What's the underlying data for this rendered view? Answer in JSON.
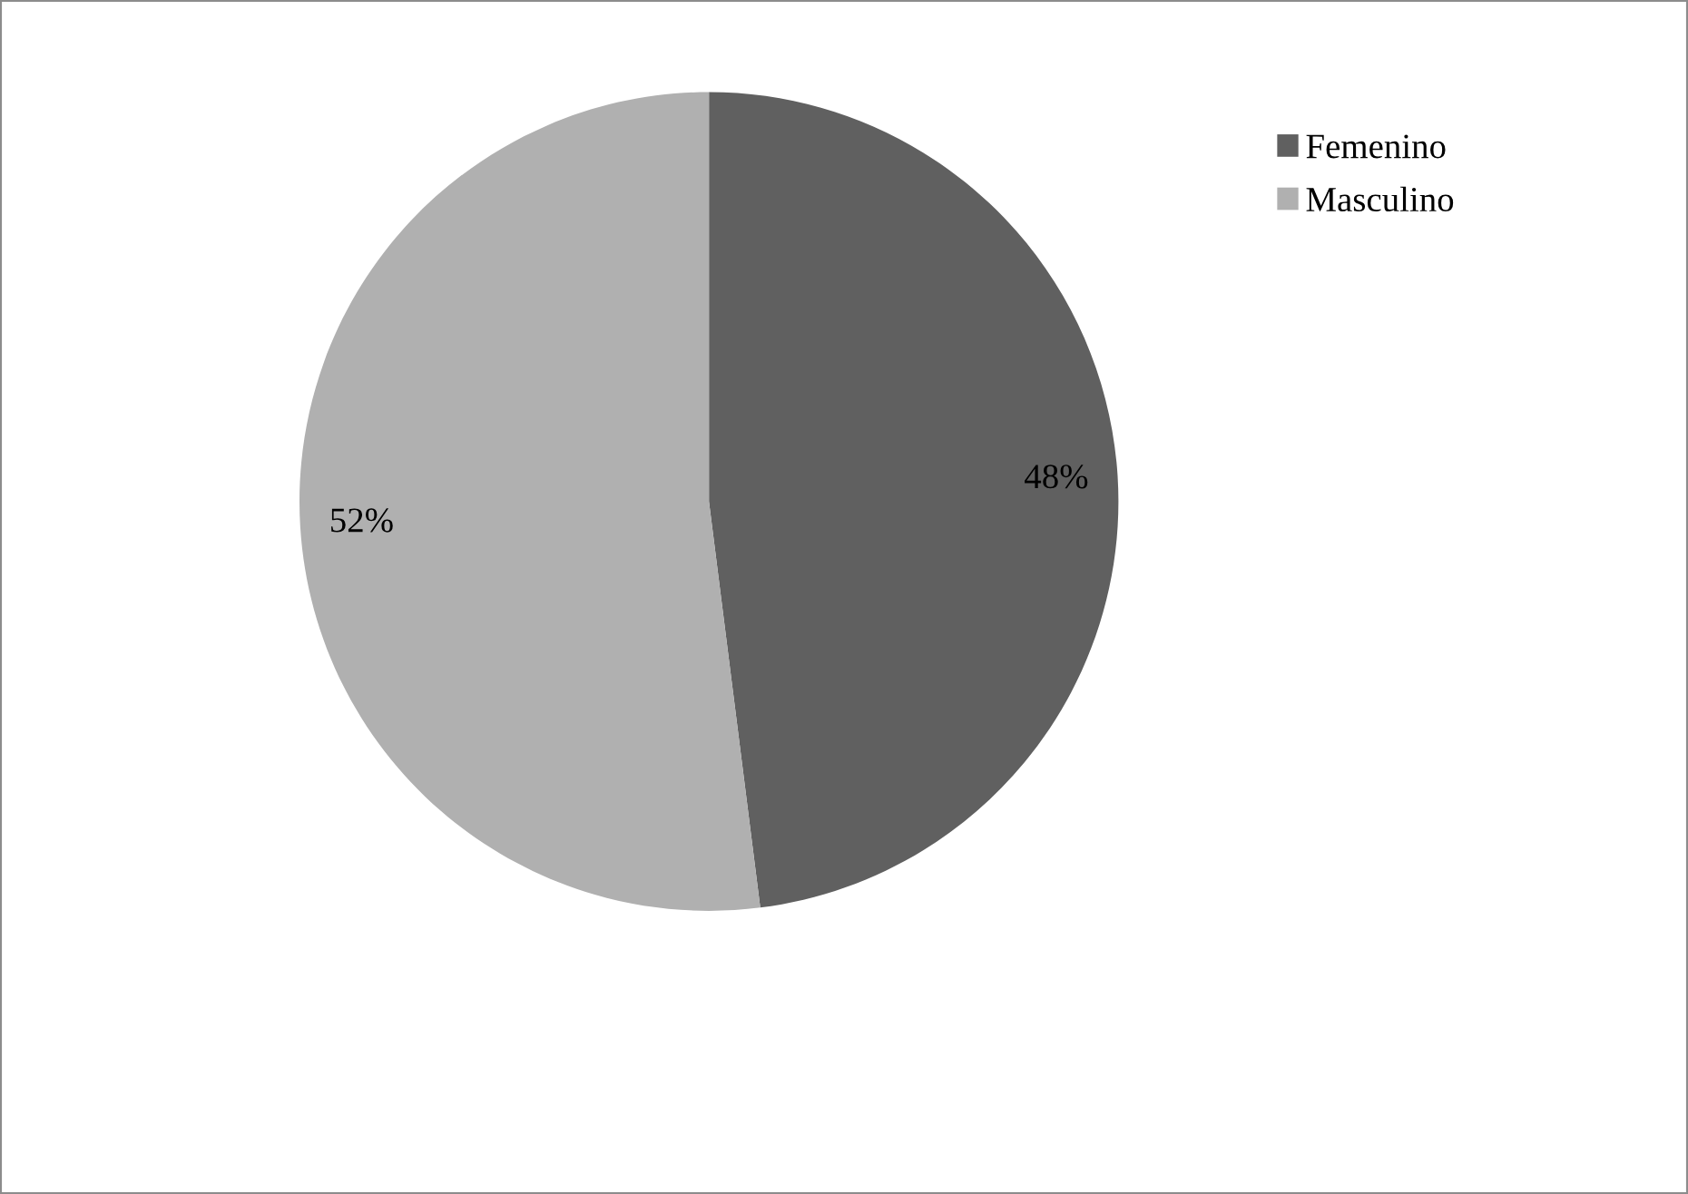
{
  "chart_data": {
    "type": "pie",
    "categories": [
      "Femenino",
      "Masculino"
    ],
    "values": [
      48,
      52
    ],
    "colors": [
      "#606060",
      "#b0b0b0"
    ],
    "value_labels": [
      "48%",
      "52%"
    ],
    "legend": "top right"
  }
}
